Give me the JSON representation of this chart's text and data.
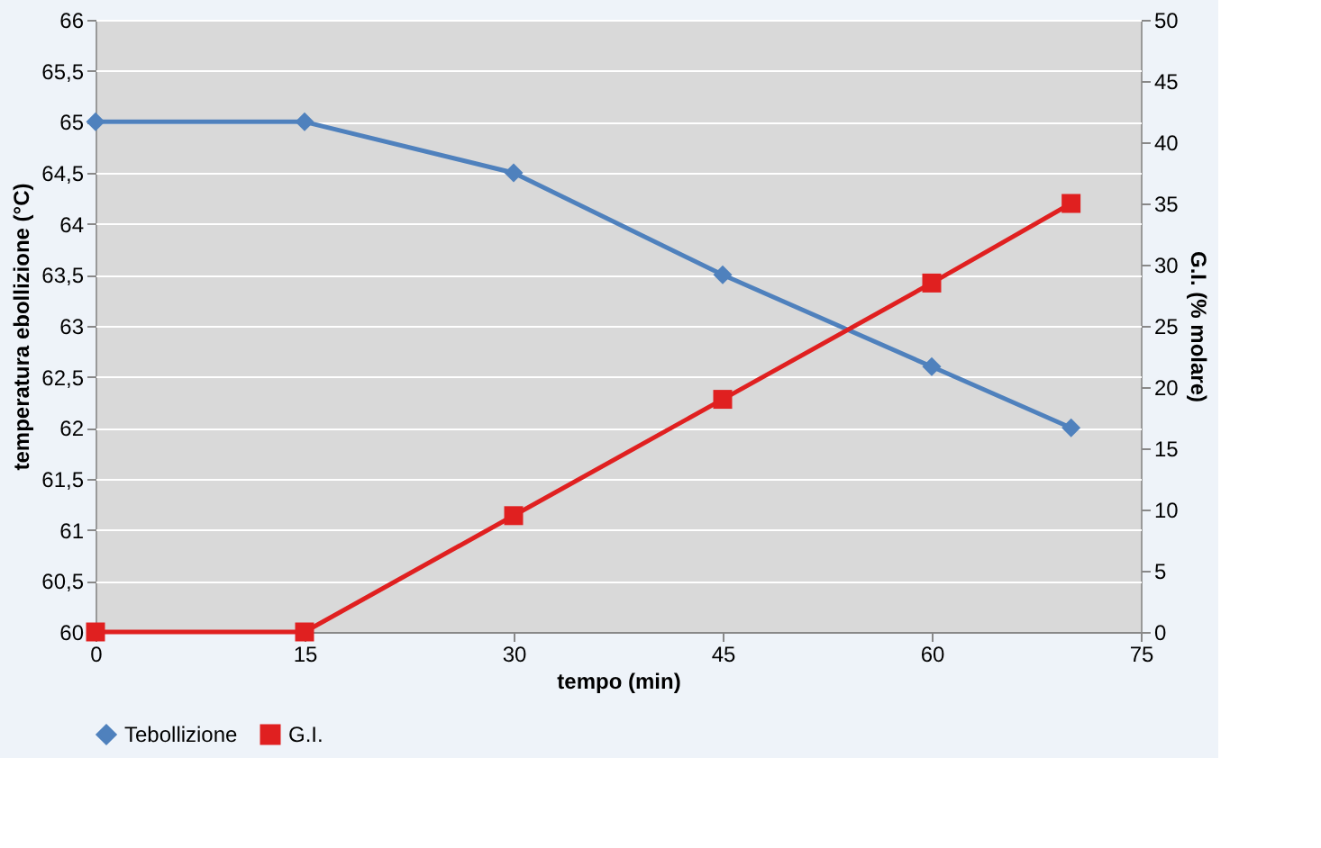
{
  "chart_data": {
    "type": "line",
    "xlabel": "tempo (min)",
    "ylabel": "temperatura ebollizione (°C)",
    "y2label": "G.I. (% molare)",
    "x": [
      0,
      15,
      30,
      45,
      60,
      70
    ],
    "xlim": [
      0,
      75
    ],
    "xticks": [
      0,
      15,
      30,
      45,
      60,
      75
    ],
    "ylim": [
      60,
      66
    ],
    "yticks": [
      60,
      {
        "value": 60.5,
        "label": "60,5"
      },
      61,
      {
        "value": 61.5,
        "label": "61,5"
      },
      62,
      {
        "value": 62.5,
        "label": "62,5"
      },
      63,
      {
        "value": 63.5,
        "label": "63,5"
      },
      64,
      {
        "value": 64.5,
        "label": "64,5"
      },
      65,
      {
        "value": 65.5,
        "label": "65,5"
      },
      66
    ],
    "y2lim": [
      0,
      50
    ],
    "y2ticks": [
      0,
      5,
      10,
      15,
      20,
      25,
      30,
      35,
      40,
      45,
      50
    ],
    "grid": "y",
    "legend": "bottom",
    "series": [
      {
        "name": "Tebollizione",
        "color": "#4f81bd",
        "marker": "diamond",
        "values": [
          65,
          65,
          64.5,
          63.5,
          62.6,
          62.0
        ]
      },
      {
        "name": "G.I.",
        "color": "#e02020",
        "marker": "square",
        "axis": "y2",
        "values": [
          0,
          0,
          9.5,
          19,
          28.5,
          35
        ]
      }
    ]
  }
}
